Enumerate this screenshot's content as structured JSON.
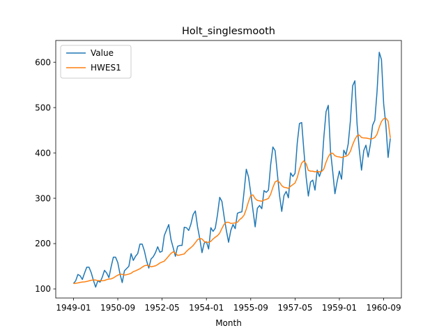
{
  "chart_data": {
    "type": "line",
    "title": "Holt_singlesmooth",
    "xlabel": "Month",
    "ylabel": "",
    "grid": false,
    "legend": "top-left",
    "x_start": "1949-01",
    "x_tick_labels": [
      "1949-01",
      "1950-09",
      "1952-05",
      "1954-01",
      "1955-09",
      "1957-05",
      "1959-01",
      "1960-09"
    ],
    "y_ticks": [
      100,
      200,
      300,
      400,
      500,
      600
    ],
    "xlim": [
      "1948-05",
      "1961-05"
    ],
    "ylim": [
      80,
      648
    ],
    "series": [
      {
        "name": "Value",
        "color": "#1f77b4",
        "values": [
          112,
          118,
          132,
          129,
          121,
          135,
          148,
          148,
          136,
          119,
          104,
          118,
          115,
          126,
          141,
          135,
          125,
          149,
          170,
          170,
          158,
          133,
          114,
          140,
          145,
          150,
          178,
          163,
          172,
          178,
          199,
          199,
          184,
          162,
          146,
          166,
          171,
          180,
          193,
          181,
          183,
          218,
          230,
          242,
          209,
          191,
          172,
          194,
          196,
          196,
          236,
          235,
          229,
          243,
          264,
          272,
          237,
          211,
          180,
          201,
          204,
          188,
          235,
          227,
          234,
          264,
          302,
          293,
          259,
          229,
          203,
          229,
          242,
          233,
          267,
          269,
          270,
          315,
          364,
          347,
          312,
          274,
          237,
          278,
          284,
          277,
          317,
          313,
          318,
          374,
          413,
          405,
          355,
          306,
          271,
          306,
          315,
          301,
          356,
          348,
          355,
          422,
          465,
          467,
          404,
          347,
          305,
          336,
          340,
          318,
          362,
          348,
          363,
          435,
          491,
          505,
          404,
          359,
          310,
          337,
          360,
          342,
          406,
          396,
          420,
          472,
          548,
          559,
          463,
          407,
          362,
          405,
          417,
          391,
          419,
          461,
          472,
          535,
          622,
          606,
          508,
          461,
          390,
          432
        ]
      },
      {
        "name": "HWES1",
        "color": "#ff7f0e",
        "values": [
          112,
          112.6,
          113.3,
          114.4,
          115.2,
          115.6,
          116.5,
          117.9,
          119.0,
          119.8,
          119.7,
          118.2,
          118.2,
          118.0,
          118.7,
          120.5,
          121.9,
          122.2,
          124.3,
          127.5,
          130.4,
          132.3,
          132.4,
          130.5,
          131.5,
          132.8,
          134.5,
          138.2,
          140.0,
          142.2,
          144.5,
          148.0,
          151.1,
          152.4,
          151.4,
          148.9,
          149.9,
          151.0,
          153.7,
          157.3,
          159.4,
          161.3,
          166.9,
          172.8,
          178.3,
          181.9,
          179.0,
          174.0,
          174.9,
          176.1,
          177.2,
          182.9,
          187.4,
          191.2,
          195.8,
          202.1,
          208.6,
          211.1,
          210.2,
          204.7,
          203.0,
          203.0,
          205.0,
          210.2,
          214.1,
          217.6,
          223.2,
          233.5,
          242.7,
          247.0,
          247.0,
          244.5,
          245.0,
          245.7,
          247.2,
          252.9,
          256.8,
          262.7,
          276.3,
          292.7,
          305.9,
          307.5,
          299.2,
          295.2,
          294.4,
          293.4,
          296.0,
          297.4,
          299.8,
          308.9,
          323.9,
          335.8,
          338.7,
          335.2,
          327.8,
          324.2,
          323.4,
          321.8,
          326.6,
          330.0,
          333.8,
          345.4,
          363.9,
          377.6,
          382.7,
          376.1,
          361.4,
          359.8,
          359.8,
          358.2,
          359.0,
          358.3,
          359.0,
          364.6,
          379.6,
          391.5,
          398.9,
          399.5,
          393.9,
          391.8,
          391.2,
          389.8,
          391.4,
          392.7,
          395.8,
          403.7,
          418.2,
          429.8,
          438.0,
          439.5,
          434.1,
          433.0,
          432.9,
          431.9,
          430.7,
          431.6,
          434.0,
          441.3,
          456.7,
          469.3,
          475.5,
          476.7,
          470.3,
          433.0
        ]
      }
    ]
  }
}
